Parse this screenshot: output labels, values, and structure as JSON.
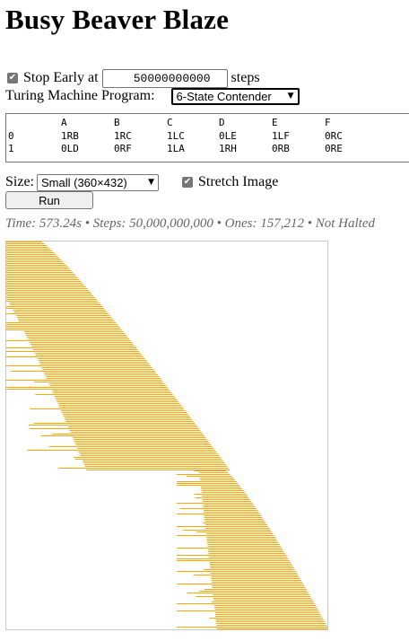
{
  "page": {
    "title": "Busy Beaver Blaze"
  },
  "controls": {
    "stop_early_label": "Stop Early at",
    "stop_early_checked": true,
    "stop_early_value": "50000000000",
    "steps_label": "steps",
    "program_label": "Turing Machine Program:",
    "program_selected": "6-State Contender",
    "size_label": "Size:",
    "size_selected": "Small (360×432)",
    "stretch_label": "Stretch Image",
    "stretch_checked": true,
    "run_label": "Run"
  },
  "program_table": {
    "headers": [
      "",
      "A",
      "B",
      "C",
      "D",
      "E",
      "F"
    ],
    "rows": [
      [
        "0",
        "1RB",
        "1RC",
        "1LC",
        "0LE",
        "1LF",
        "0RC"
      ],
      [
        "1",
        "0LD",
        "0RF",
        "1LA",
        "1RH",
        "0RB",
        "0RE"
      ]
    ]
  },
  "status": {
    "text": "Time: 573.24s • Steps: 50,000,000,000 • Ones: 157,212 • Not Halted"
  },
  "visualization": {
    "fill_color": "#ffa500",
    "border_color": "#c8c8c8"
  }
}
